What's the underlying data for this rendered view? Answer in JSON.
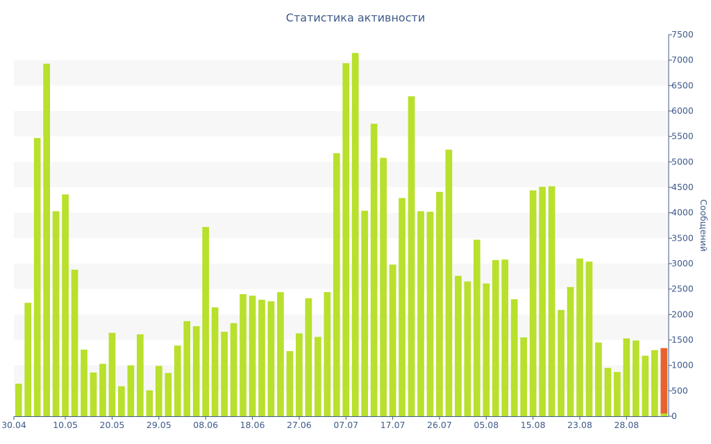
{
  "chart_data": {
    "type": "bar",
    "title": "Статистика активности",
    "ylabel": "Сообщений",
    "ylim": [
      0,
      7500
    ],
    "y_ticks": [
      0,
      500,
      1000,
      1500,
      2000,
      2500,
      3000,
      3500,
      4000,
      4500,
      5000,
      5500,
      6000,
      6500,
      7000,
      7500
    ],
    "y_axis_side": "right",
    "grid": "alternating horizontal bands",
    "x_tick_labels": [
      {
        "label": "30.04",
        "index": 0
      },
      {
        "label": "10.05",
        "index": 5
      },
      {
        "label": "20.05",
        "index": 10
      },
      {
        "label": "29.05",
        "index": 15
      },
      {
        "label": "08.06",
        "index": 20
      },
      {
        "label": "18.06",
        "index": 25
      },
      {
        "label": "27.06",
        "index": 30
      },
      {
        "label": "07.07",
        "index": 35
      },
      {
        "label": "17.07",
        "index": 40
      },
      {
        "label": "26.07",
        "index": 45
      },
      {
        "label": "05.08",
        "index": 50
      },
      {
        "label": "15.08",
        "index": 55
      },
      {
        "label": "23.08",
        "index": 60
      },
      {
        "label": "28.08",
        "index": 65
      }
    ],
    "values": [
      640,
      2230,
      5470,
      6930,
      4030,
      4360,
      2880,
      1310,
      860,
      1030,
      1640,
      590,
      1000,
      1610,
      510,
      990,
      850,
      1390,
      1870,
      1770,
      3720,
      2140,
      1660,
      1830,
      2400,
      2370,
      2290,
      2260,
      2440,
      1280,
      1630,
      2320,
      1560,
      2440,
      5170,
      6940,
      7140,
      4040,
      5750,
      5080,
      2980,
      4290,
      6290,
      4030,
      4020,
      4410,
      5240,
      2760,
      2650,
      3470,
      2610,
      3070,
      3080,
      2300,
      1550,
      4440,
      4510,
      4520,
      2090,
      2540,
      3100,
      3040,
      1450,
      950,
      870,
      1530,
      1490,
      1190,
      1300,
      1340
    ],
    "bar_colors": {
      "default": "#b8e02c",
      "highlight": "#e8632c"
    },
    "highlight_index": 69
  }
}
